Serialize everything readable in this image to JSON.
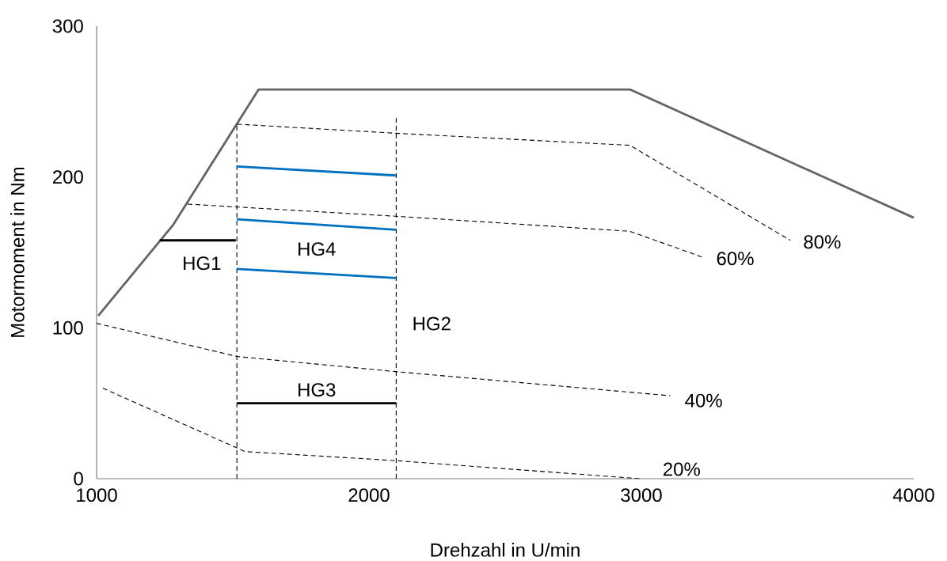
{
  "chart_data": {
    "type": "line",
    "xlabel": "Drehzahl in U/min",
    "ylabel": "Motormoment in Nm",
    "xlim": [
      1000,
      4000
    ],
    "ylim": [
      0,
      300
    ],
    "xticks": [
      1000,
      2000,
      3000,
      4000
    ],
    "yticks": [
      0,
      100,
      200,
      300
    ],
    "grid": false,
    "legend": false,
    "marker": "none",
    "series": [
      {
        "x": [
          1006,
          1280,
          1595,
          2958,
          4000
        ],
        "values": [
          108,
          168,
          258,
          258,
          173
        ],
        "color": "#5f6569",
        "line_style": "solid"
      },
      {
        "name": "80%",
        "x": [
          1516,
          2097,
          2958,
          3547
        ],
        "values": [
          235,
          229,
          221,
          158
        ],
        "color": "#000000",
        "line_style": "dashed"
      },
      {
        "name": "60%",
        "x": [
          1334,
          2097,
          2958,
          3222
        ],
        "values": [
          182,
          174,
          164,
          147
        ],
        "color": "#000000",
        "line_style": "dashed"
      },
      {
        "name": "40%",
        "x": [
          1000,
          1516,
          2097,
          3106
        ],
        "values": [
          103,
          81,
          71,
          55
        ],
        "color": "#000000",
        "line_style": "dashed"
      },
      {
        "name": "20%",
        "x": [
          1023,
          1545,
          2097,
          2996
        ],
        "values": [
          60,
          18,
          12,
          0
        ],
        "color": "#000000",
        "line_style": "dashed"
      },
      {
        "x": [
          1515,
          1515
        ],
        "values": [
          0,
          235
        ],
        "color": "#000000",
        "line_style": "dashed"
      },
      {
        "name": "HG2",
        "x": [
          2100,
          2100
        ],
        "values": [
          0,
          239
        ],
        "color": "#000000",
        "line_style": "dashed"
      },
      {
        "x": [
          1515,
          2100
        ],
        "values": [
          207,
          201
        ],
        "color": "#0070c0",
        "line_style": "solid"
      },
      {
        "name": "HG4",
        "x": [
          1515,
          2100
        ],
        "values": [
          172,
          165
        ],
        "color": "#0070c0",
        "line_style": "solid"
      },
      {
        "x": [
          1515,
          2100
        ],
        "values": [
          139,
          133
        ],
        "color": "#0070c0",
        "line_style": "solid"
      },
      {
        "name": "HG1",
        "x": [
          1232,
          1511
        ],
        "values": [
          158,
          158
        ],
        "color": "#000000",
        "line_style": "solid"
      },
      {
        "name": "HG3",
        "x": [
          1515,
          2100
        ],
        "values": [
          50,
          50
        ],
        "color": "#000000",
        "line_style": "solid"
      }
    ]
  }
}
